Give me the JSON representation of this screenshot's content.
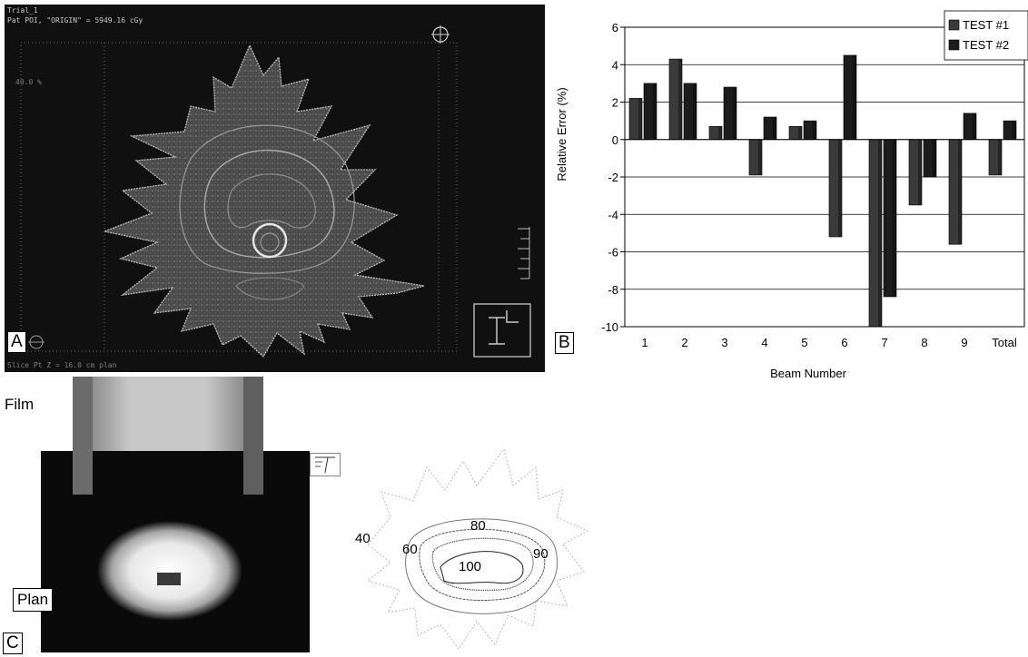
{
  "panel_a": {
    "letter": "A",
    "hud_line1": "Trial_1",
    "hud_line2": "Pat POI, \"ORIGIN\" = 5949.16 cGy",
    "hud_line3": "40.0 %",
    "hud_bottom": "Slice Pt Z = 16.0 cm     plan"
  },
  "panel_b": {
    "letter": "B"
  },
  "panel_c": {
    "letter": "C",
    "film_label": "Film",
    "plan_label": "Plan",
    "isodose_labels": [
      "40",
      "60",
      "80",
      "90",
      "100"
    ]
  },
  "chart_data": {
    "type": "bar",
    "categories": [
      "1",
      "2",
      "3",
      "4",
      "5",
      "6",
      "7",
      "8",
      "9",
      "Total"
    ],
    "series": [
      {
        "name": "TEST #1",
        "values": [
          2.2,
          4.3,
          0.7,
          -1.9,
          0.7,
          -5.2,
          -10.0,
          -3.5,
          -5.6,
          -1.9
        ],
        "color": "#3a3a3a"
      },
      {
        "name": "TEST #2",
        "values": [
          3.0,
          3.0,
          2.8,
          1.2,
          1.0,
          4.5,
          -8.4,
          -2.0,
          1.4,
          1.0
        ],
        "color": "#1c1c1c"
      }
    ],
    "xlabel": "Beam Number",
    "ylabel": "Relative Error (%)",
    "ylim": [
      -10,
      6
    ],
    "yticks": [
      "6",
      "4",
      "2",
      "0",
      "-2",
      "-4",
      "-6",
      "-8",
      "-10"
    ],
    "grid": true,
    "legend": "top-right"
  }
}
